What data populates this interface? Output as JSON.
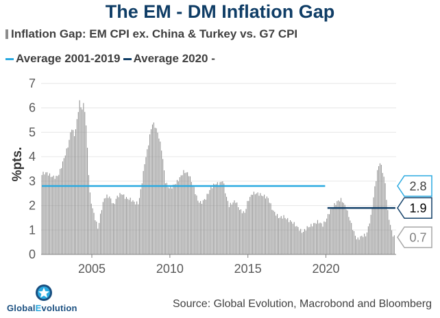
{
  "title": "The EM - DM Inflation Gap",
  "legend": {
    "series_label": "Inflation Gap: EM CPI ex. China & Turkey vs. G7 CPI",
    "avg1_label": "Average 2001-2019",
    "avg2_label": "Average 2020 -"
  },
  "source": "Source: Global Evolution, Macrobond and Bloomberg",
  "logo": {
    "part1": "Global",
    "part2": "E",
    "part3": "volution"
  },
  "colors": {
    "title": "#0f3d66",
    "bars": "#8c8c8c",
    "avg1": "#29a9e0",
    "avg2": "#0f3d66",
    "latest": "#a6a6a6"
  },
  "chart_data": {
    "type": "bar",
    "title": "The EM - DM Inflation Gap",
    "ylabel": "%pts.",
    "xlabel": "",
    "ylim": [
      0,
      7
    ],
    "yticks": [
      "0",
      "1",
      "2",
      "3",
      "4",
      "5",
      "6",
      "7"
    ],
    "xlim": [
      2001.75,
      2024.5
    ],
    "xticks": [
      {
        "value": 2005,
        "label": "2005"
      },
      {
        "value": 2010,
        "label": "2010"
      },
      {
        "value": 2015,
        "label": "2015"
      },
      {
        "value": 2020,
        "label": "2020"
      }
    ],
    "series_name": "Inflation Gap: EM CPI ex. China & Turkey vs. G7 CPI",
    "frequency": "monthly",
    "anchors": [
      [
        2001.8,
        3.3
      ],
      [
        2002.1,
        3.35
      ],
      [
        2002.4,
        3.2
      ],
      [
        2002.7,
        3.15
      ],
      [
        2002.9,
        3.3
      ],
      [
        2003.2,
        3.9
      ],
      [
        2003.5,
        4.5
      ],
      [
        2003.7,
        5.2
      ],
      [
        2003.9,
        4.85
      ],
      [
        2004.1,
        5.7
      ],
      [
        2004.2,
        6.3
      ],
      [
        2004.35,
        5.9
      ],
      [
        2004.5,
        6.2
      ],
      [
        2004.6,
        5.6
      ],
      [
        2004.75,
        4.0
      ],
      [
        2004.85,
        2.6
      ],
      [
        2005.0,
        2.0
      ],
      [
        2005.2,
        1.5
      ],
      [
        2005.4,
        1.05
      ],
      [
        2005.6,
        1.8
      ],
      [
        2005.8,
        2.3
      ],
      [
        2006.0,
        2.4
      ],
      [
        2006.2,
        2.3
      ],
      [
        2006.4,
        2.0
      ],
      [
        2006.6,
        2.35
      ],
      [
        2006.9,
        2.5
      ],
      [
        2007.2,
        2.3
      ],
      [
        2007.5,
        2.25
      ],
      [
        2007.8,
        2.1
      ],
      [
        2008.0,
        2.1
      ],
      [
        2008.2,
        2.9
      ],
      [
        2008.4,
        3.8
      ],
      [
        2008.6,
        4.4
      ],
      [
        2008.75,
        5.0
      ],
      [
        2008.9,
        5.4
      ],
      [
        2009.1,
        5.2
      ],
      [
        2009.3,
        4.8
      ],
      [
        2009.5,
        4.2
      ],
      [
        2009.7,
        3.0
      ],
      [
        2009.85,
        2.8
      ],
      [
        2010.0,
        2.7
      ],
      [
        2010.2,
        2.8
      ],
      [
        2010.5,
        3.0
      ],
      [
        2010.7,
        3.2
      ],
      [
        2010.9,
        3.4
      ],
      [
        2011.2,
        3.3
      ],
      [
        2011.5,
        2.8
      ],
      [
        2011.8,
        2.2
      ],
      [
        2012.0,
        2.1
      ],
      [
        2012.3,
        2.3
      ],
      [
        2012.6,
        2.7
      ],
      [
        2012.9,
        2.9
      ],
      [
        2013.2,
        2.9
      ],
      [
        2013.4,
        3.05
      ],
      [
        2013.6,
        2.4
      ],
      [
        2013.8,
        2.0
      ],
      [
        2014.0,
        2.1
      ],
      [
        2014.2,
        2.2
      ],
      [
        2014.5,
        1.8
      ],
      [
        2014.8,
        1.7
      ],
      [
        2015.0,
        2.2
      ],
      [
        2015.3,
        2.5
      ],
      [
        2015.6,
        2.5
      ],
      [
        2016.0,
        2.4
      ],
      [
        2016.3,
        2.3
      ],
      [
        2016.6,
        1.8
      ],
      [
        2017.0,
        1.5
      ],
      [
        2017.3,
        1.55
      ],
      [
        2017.6,
        1.4
      ],
      [
        2017.9,
        1.3
      ],
      [
        2018.2,
        1.1
      ],
      [
        2018.5,
        0.9
      ],
      [
        2018.8,
        1.1
      ],
      [
        2019.1,
        1.2
      ],
      [
        2019.5,
        1.35
      ],
      [
        2019.8,
        1.2
      ],
      [
        2020.0,
        1.4
      ],
      [
        2020.2,
        1.7
      ],
      [
        2020.5,
        2.0
      ],
      [
        2020.8,
        2.2
      ],
      [
        2021.0,
        2.25
      ],
      [
        2021.3,
        1.9
      ],
      [
        2021.6,
        1.3
      ],
      [
        2021.8,
        0.9
      ],
      [
        2022.0,
        0.6
      ],
      [
        2022.3,
        0.75
      ],
      [
        2022.6,
        0.8
      ],
      [
        2022.9,
        1.6
      ],
      [
        2023.1,
        2.6
      ],
      [
        2023.3,
        3.4
      ],
      [
        2023.45,
        3.8
      ],
      [
        2023.6,
        3.5
      ],
      [
        2023.8,
        2.9
      ],
      [
        2023.95,
        1.8
      ],
      [
        2024.1,
        1.3
      ],
      [
        2024.25,
        0.85
      ],
      [
        2024.4,
        0.7
      ]
    ],
    "averages": [
      {
        "name": "Average 2001-2019",
        "value": 2.8,
        "x_start": 2001.8,
        "x_end": 2019.95,
        "label": "2.8"
      },
      {
        "name": "Average 2020 -",
        "value": 1.9,
        "x_start": 2020.1,
        "x_end": 2024.45,
        "label": "1.9"
      }
    ],
    "latest": {
      "value": 0.7,
      "label": "0.7"
    }
  }
}
